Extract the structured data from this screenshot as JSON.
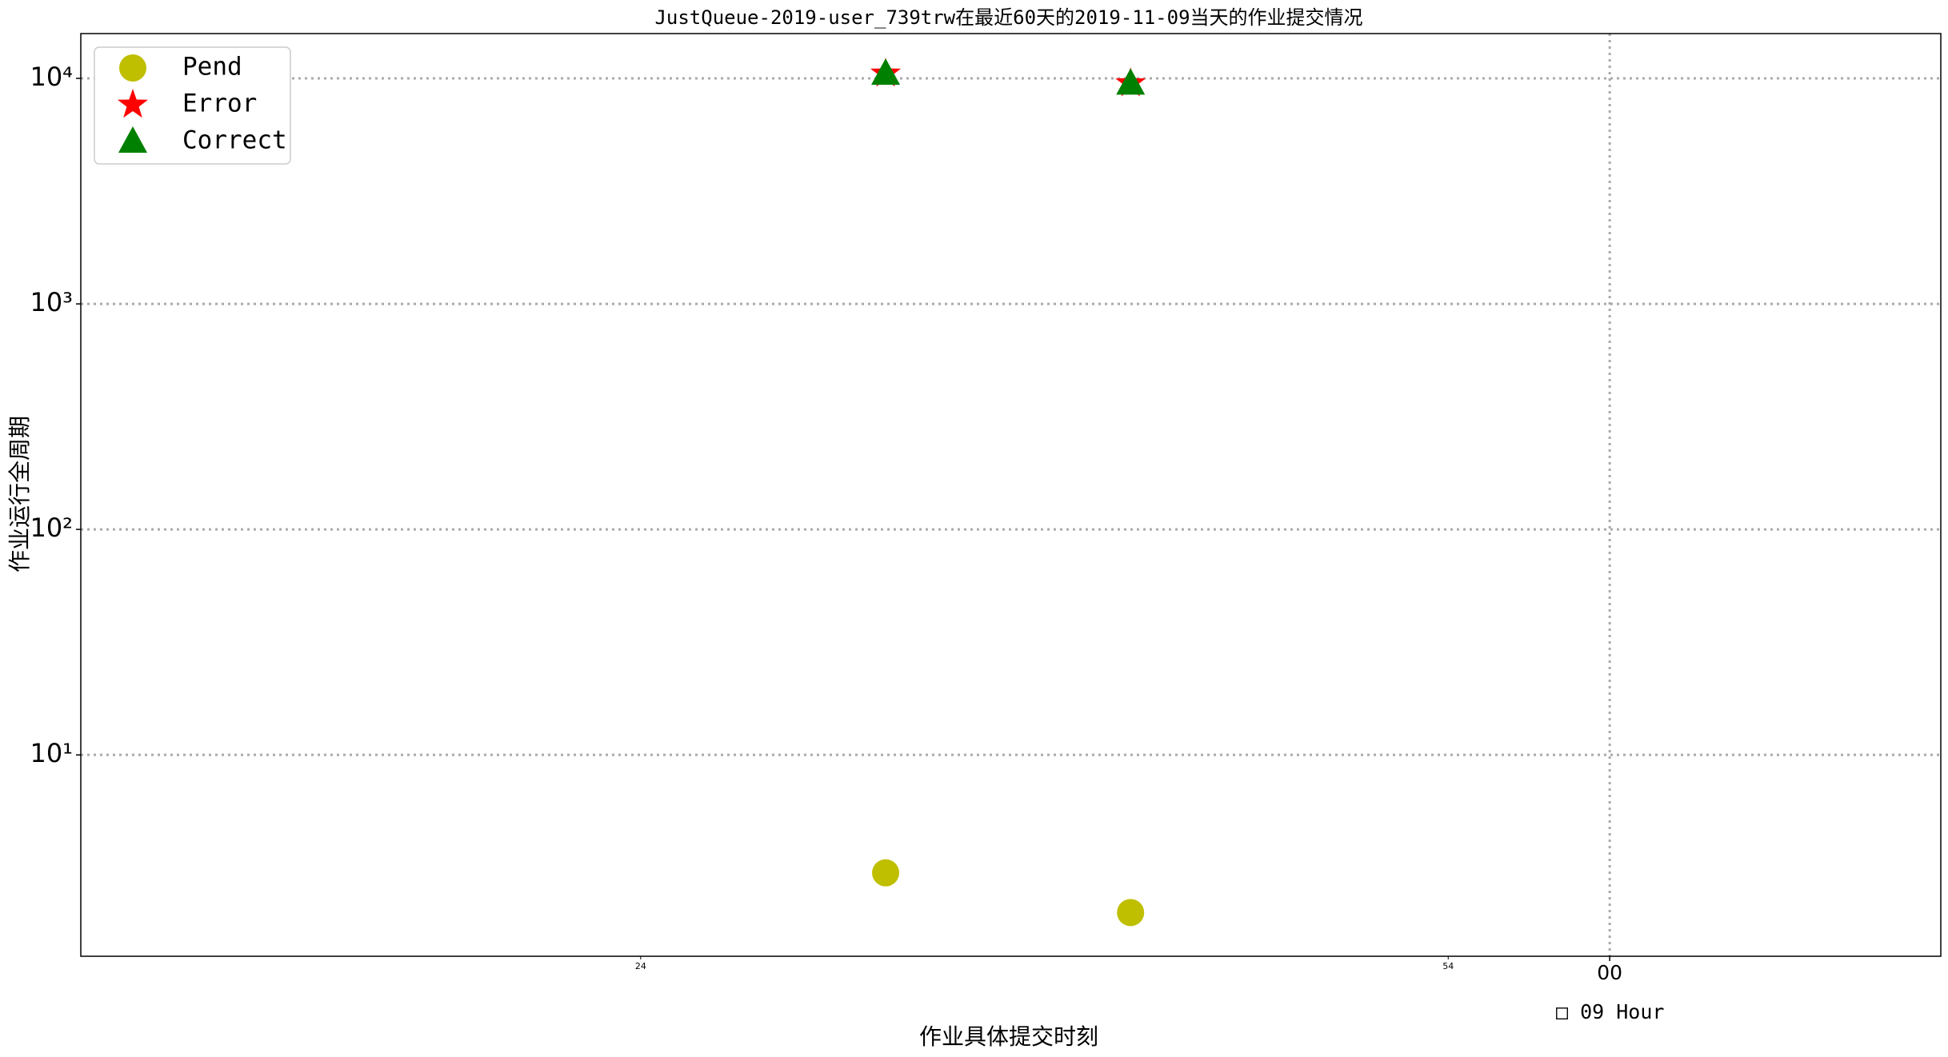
{
  "chart_data": {
    "type": "scatter",
    "title": "JustQueue-2019-user_739trw在最近60天的2019-11-09当天的作业提交情况",
    "x_label": "作业具体提交时刻",
    "y_label": "作业运行全周期",
    "x_offset_label": "□ 09 Hour",
    "xlim": [
      483.2,
      552.3
    ],
    "xticks": [
      {
        "value": 540,
        "label": "00"
      }
    ],
    "xticks_minor": [
      {
        "value": 504,
        "label": "24"
      },
      {
        "value": 534,
        "label": "54"
      }
    ],
    "ylim": [
      1.28,
      15800
    ],
    "yticks": [
      {
        "value": 10,
        "label": "10¹"
      },
      {
        "value": 100,
        "label": "10²"
      },
      {
        "value": 1000,
        "label": "10³"
      },
      {
        "value": 10000,
        "label": "10⁴"
      }
    ],
    "log_y": true,
    "grid": true,
    "legend": "upper left",
    "series": [
      {
        "name": "Pend",
        "color": "#bfbf00",
        "marker": "circle",
        "x": [
          513.1,
          522.2
        ],
        "values": [
          3,
          2
        ]
      },
      {
        "name": "Error",
        "color": "#ff0000",
        "marker": "star",
        "x": [
          513.1,
          522.2
        ],
        "values": [
          10500,
          9500
        ]
      },
      {
        "name": "Correct",
        "color": "#008000",
        "marker": "triangle",
        "x": [
          513.1,
          522.2
        ],
        "values": [
          10500,
          9500
        ]
      }
    ]
  }
}
